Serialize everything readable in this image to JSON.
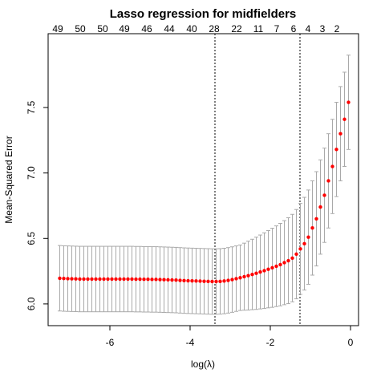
{
  "chart_data": {
    "type": "errorbar",
    "title": "Lasso regression for midfielders",
    "xlabel": "log(λ)",
    "ylabel": "Mean-Squared Error",
    "xlim": [
      -7.54,
      0.2
    ],
    "ylim": [
      5.834,
      8.064
    ],
    "xticks": [
      -6,
      -4,
      -2,
      0
    ],
    "yticks": [
      {
        "value": 6,
        "label": "6.0"
      },
      6.5,
      {
        "value": 7,
        "label": "7.0"
      },
      7.5
    ],
    "top_ticks": [
      {
        "value": -7.3,
        "label": "49"
      },
      {
        "value": -6.74,
        "label": "50"
      },
      {
        "value": -6.18,
        "label": "50"
      },
      {
        "value": -5.64,
        "label": "49"
      },
      {
        "value": -5.08,
        "label": "46"
      },
      {
        "value": -4.52,
        "label": "44"
      },
      {
        "value": -3.96,
        "label": "40"
      },
      {
        "value": -3.4,
        "label": "28"
      },
      {
        "value": -2.84,
        "label": "22"
      },
      {
        "value": -2.3,
        "label": "11"
      },
      {
        "value": -1.84,
        "label": "7"
      },
      {
        "value": -1.42,
        "label": "6"
      },
      {
        "value": -1.06,
        "label": "4"
      },
      {
        "value": -0.7,
        "label": "3"
      },
      {
        "value": -0.34,
        "label": "2"
      }
    ],
    "vlines": [
      -3.38,
      -1.26
    ],
    "color": "#ff0000",
    "bar_color": "#a9a9a9",
    "x": [
      -7.25,
      -7.15,
      -7.05,
      -6.95,
      -6.85,
      -6.75,
      -6.65,
      -6.55,
      -6.45,
      -6.35,
      -6.25,
      -6.15,
      -6.05,
      -5.95,
      -5.85,
      -5.75,
      -5.65,
      -5.55,
      -5.45,
      -5.35,
      -5.25,
      -5.15,
      -5.05,
      -4.95,
      -4.85,
      -4.75,
      -4.65,
      -4.55,
      -4.45,
      -4.35,
      -4.25,
      -4.15,
      -4.05,
      -3.95,
      -3.85,
      -3.75,
      -3.65,
      -3.55,
      -3.45,
      -3.35,
      -3.25,
      -3.15,
      -3.05,
      -2.95,
      -2.85,
      -2.75,
      -2.65,
      -2.55,
      -2.45,
      -2.35,
      -2.25,
      -2.15,
      -2.05,
      -1.95,
      -1.85,
      -1.75,
      -1.65,
      -1.55,
      -1.45,
      -1.35,
      -1.25,
      -1.15,
      -1.05,
      -0.95,
      -0.85,
      -0.75,
      -0.65,
      -0.55,
      -0.45,
      -0.35,
      -0.25,
      -0.15,
      -0.05
    ],
    "values": [
      6.196,
      6.194,
      6.193,
      6.192,
      6.191,
      6.19,
      6.19,
      6.19,
      6.19,
      6.19,
      6.19,
      6.19,
      6.19,
      6.19,
      6.19,
      6.19,
      6.19,
      6.19,
      6.19,
      6.189,
      6.189,
      6.188,
      6.188,
      6.187,
      6.187,
      6.186,
      6.185,
      6.184,
      6.183,
      6.182,
      6.18,
      6.178,
      6.177,
      6.176,
      6.175,
      6.174,
      6.173,
      6.172,
      6.171,
      6.171,
      6.172,
      6.175,
      6.18,
      6.186,
      6.193,
      6.2,
      6.208,
      6.216,
      6.225,
      6.234,
      6.244,
      6.254,
      6.265,
      6.276,
      6.288,
      6.3,
      6.315,
      6.33,
      6.35,
      6.38,
      6.42,
      6.46,
      6.51,
      6.58,
      6.65,
      6.74,
      6.83,
      6.94,
      7.05,
      7.18,
      7.3,
      7.41,
      7.54
    ],
    "se": [
      0.25,
      0.25,
      0.25,
      0.25,
      0.25,
      0.25,
      0.25,
      0.25,
      0.25,
      0.25,
      0.25,
      0.25,
      0.25,
      0.25,
      0.25,
      0.25,
      0.25,
      0.25,
      0.25,
      0.25,
      0.25,
      0.25,
      0.25,
      0.25,
      0.25,
      0.25,
      0.25,
      0.25,
      0.25,
      0.25,
      0.25,
      0.25,
      0.25,
      0.25,
      0.25,
      0.25,
      0.25,
      0.25,
      0.25,
      0.25,
      0.25,
      0.25,
      0.25,
      0.25,
      0.25,
      0.25,
      0.256,
      0.263,
      0.269,
      0.276,
      0.282,
      0.289,
      0.295,
      0.302,
      0.308,
      0.315,
      0.321,
      0.328,
      0.334,
      0.341,
      0.347,
      0.354,
      0.36,
      0.36,
      0.36,
      0.36,
      0.36,
      0.36,
      0.36,
      0.36,
      0.36,
      0.36,
      0.36
    ]
  }
}
